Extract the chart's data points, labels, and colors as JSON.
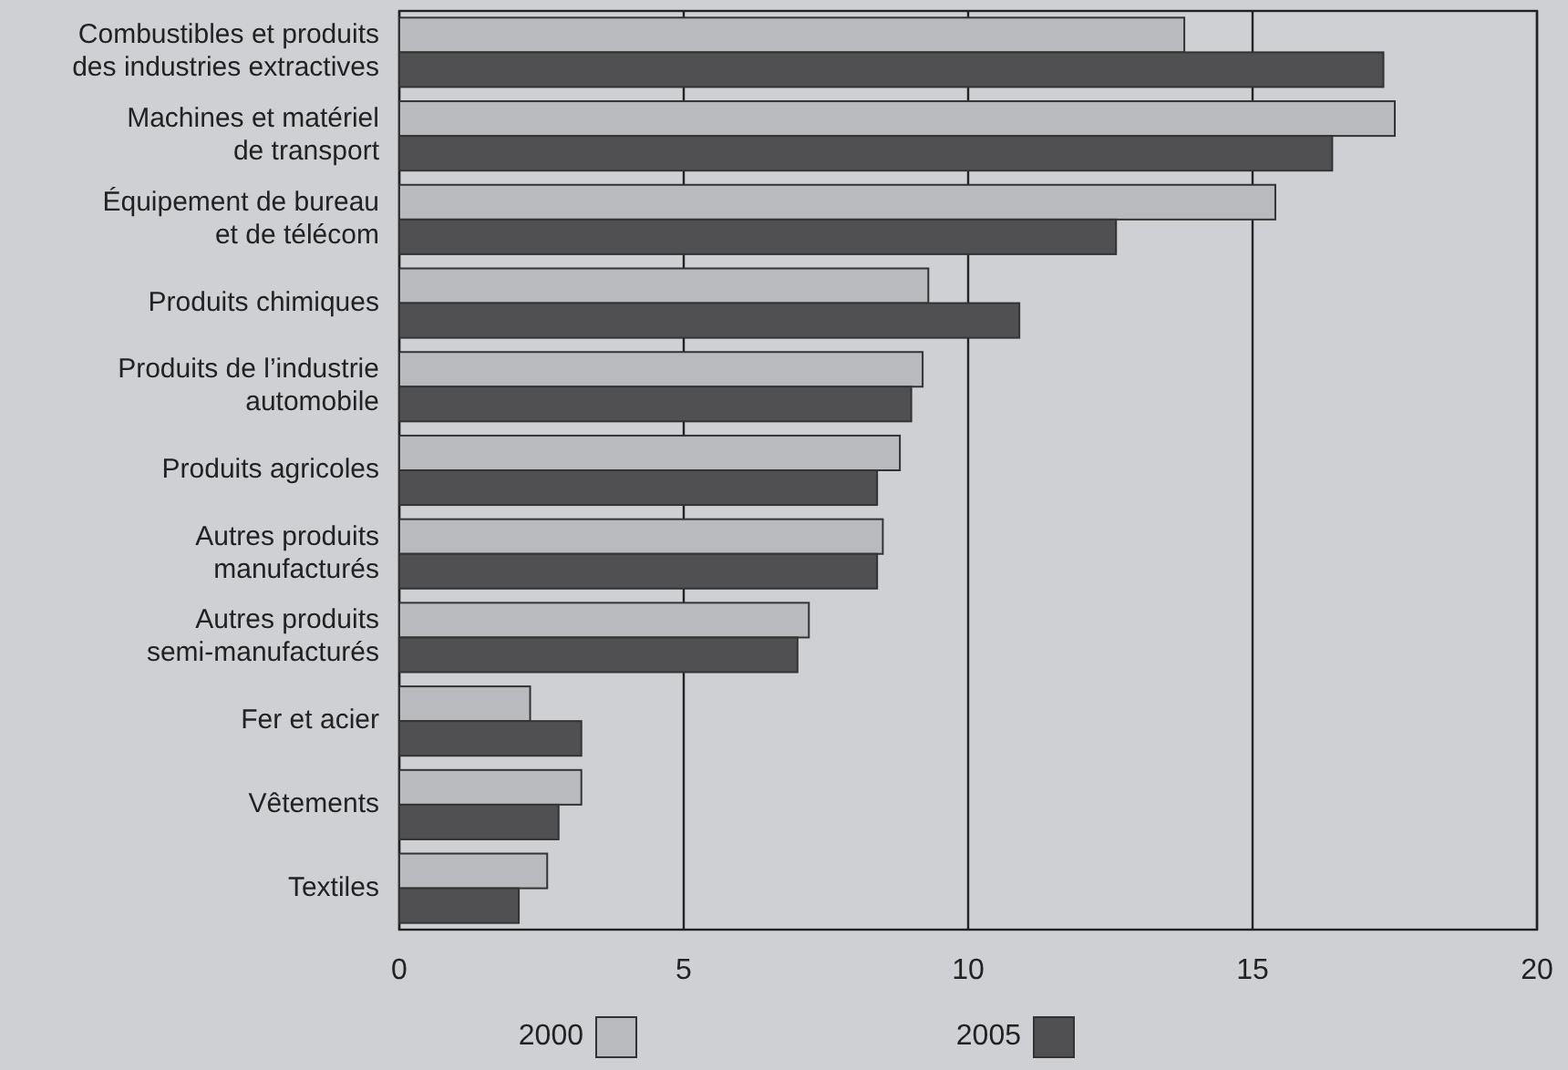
{
  "chart_data": {
    "type": "bar",
    "orientation": "horizontal",
    "categories": [
      "Combustibles et produits\ndes industries extractives",
      "Machines et matériel\nde transport",
      "Équipement de bureau\net de télécom",
      "Produits chimiques",
      "Produits de l’industrie\nautomobile",
      "Produits agricoles",
      "Autres produits\nmanufacturés",
      "Autres produits\nsemi-manufacturés",
      "Fer et acier",
      "Vêtements",
      "Textiles"
    ],
    "series": [
      {
        "name": "2000",
        "color": "#b9babe",
        "values": [
          13.8,
          17.5,
          15.4,
          9.3,
          9.2,
          8.8,
          8.5,
          7.2,
          2.3,
          3.2,
          2.6
        ]
      },
      {
        "name": "2005",
        "color": "#505052",
        "values": [
          17.3,
          16.4,
          12.6,
          10.9,
          9.0,
          8.4,
          8.4,
          7.0,
          3.2,
          2.8,
          2.1
        ]
      }
    ],
    "xlim": [
      0,
      20
    ],
    "xticks": [
      0,
      5,
      10,
      15,
      20
    ],
    "grid": "x",
    "legend": "bottom"
  }
}
